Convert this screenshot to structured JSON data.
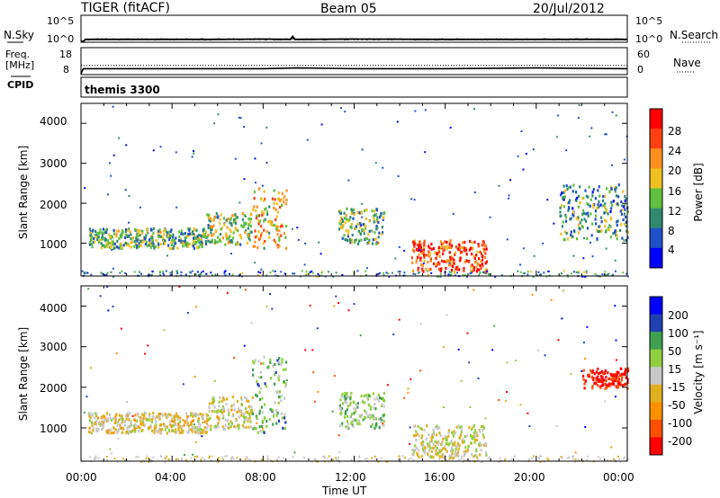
{
  "header": {
    "title": "TIGER (fitACF)",
    "beam": "Beam 05",
    "date": "20/Jul/2012"
  },
  "strip1": {
    "left_label": "N.Sky",
    "left_ticks": [
      "10^5",
      "10^0"
    ],
    "right_ticks": [
      "10^5",
      "10^0"
    ],
    "right_label": "N.Search"
  },
  "strip2": {
    "left_label_1": "Freq.",
    "left_label_2": "[MHz]",
    "left_ticks": [
      "18",
      "8"
    ],
    "right_ticks": [
      "60",
      "0"
    ],
    "right_label": "Nave"
  },
  "strip3": {
    "left_label": "CPID",
    "program": "themis 3300"
  },
  "panels": {
    "power": {
      "ylabel": "Slant Range [km]",
      "yticks": [
        "4000",
        "3000",
        "2000",
        "1000"
      ],
      "colorbar_label": "Power [dB]",
      "colorbar_ticks": [
        "28",
        "24",
        "20",
        "16",
        "12",
        "8",
        "4"
      ]
    },
    "velocity": {
      "ylabel": "Slant Range [km]",
      "yticks": [
        "4000",
        "3000",
        "2000",
        "1000"
      ],
      "colorbar_label": "Velocity [m s⁻¹]",
      "colorbar_ticks": [
        "200",
        "100",
        "50",
        "15",
        "-15",
        "-50",
        "-100",
        "-200"
      ]
    }
  },
  "xaxis": {
    "label": "Time UT",
    "ticks": [
      "00:00",
      "04:00",
      "08:00",
      "12:00",
      "16:00",
      "20:00",
      "00:00"
    ]
  },
  "colors": {
    "power_scale": [
      "#0000ff",
      "#2050c8",
      "#308a70",
      "#60c040",
      "#f0c020",
      "#ff9020",
      "#ff4010",
      "#ff0000"
    ],
    "velocity_scale": [
      "#ff0000",
      "#ff5000",
      "#ff9000",
      "#e0b020",
      "#c8c8c8",
      "#90d040",
      "#40a050",
      "#2040b0",
      "#0000ff"
    ]
  },
  "chart_data": [
    {
      "type": "line",
      "title": "N.Sky / N.Search",
      "ylim_log10": [
        0,
        5
      ],
      "x_hours": [
        0,
        0.1,
        0.2,
        2,
        4,
        6,
        8,
        9.2,
        9.3,
        9.4,
        12,
        16,
        20,
        24
      ],
      "series": [
        {
          "name": "N.Sky",
          "values_log10": [
            0,
            0,
            0.4,
            0.4,
            0.4,
            0.4,
            0.45,
            0.4,
            1.0,
            0.4,
            0.45,
            0.4,
            0.4,
            0.4
          ]
        }
      ]
    },
    {
      "type": "line",
      "title": "Freq. [MHz] / Nave",
      "ylim_freq": [
        8,
        18
      ],
      "ylim_nave": [
        0,
        60
      ],
      "x_hours": [
        0,
        0.1,
        2,
        4,
        6,
        8,
        9.5,
        12,
        16,
        20,
        24
      ],
      "series": [
        {
          "name": "Freq.",
          "values": [
            8,
            10,
            10,
            10,
            10,
            10,
            10.3,
            10,
            10,
            10.3,
            10
          ]
        },
        {
          "name": "Nave",
          "values": [
            20,
            20,
            20,
            20,
            20,
            20,
            20,
            20,
            20,
            20,
            20
          ]
        }
      ]
    },
    {
      "type": "heatmap",
      "title": "Power [dB]",
      "xlabel": "Time UT",
      "ylabel": "Slant Range [km]",
      "xlim_hours": [
        0,
        24
      ],
      "ylim_km": [
        180,
        4500
      ],
      "zlim": [
        0,
        30
      ],
      "echo_regions": [
        {
          "t_start": 0.3,
          "t_end": 5.5,
          "range_start_km": 900,
          "range_end_km": 1400,
          "power_db": 12
        },
        {
          "t_start": 5.5,
          "t_end": 7.5,
          "range_start_km": 1000,
          "range_end_km": 1800,
          "power_db": 14
        },
        {
          "t_start": 7.5,
          "t_end": 9.0,
          "range_start_km": 900,
          "range_end_km": 2400,
          "power_db": 18
        },
        {
          "t_start": 11.3,
          "t_end": 13.3,
          "range_start_km": 1000,
          "range_end_km": 1900,
          "power_db": 12
        },
        {
          "t_start": 14.5,
          "t_end": 17.8,
          "range_start_km": 300,
          "range_end_km": 1100,
          "power_db": 24
        },
        {
          "t_start": 21.0,
          "t_end": 24.0,
          "range_start_km": 1100,
          "range_end_km": 2500,
          "power_db": 10
        }
      ]
    },
    {
      "type": "heatmap",
      "title": "Velocity [m s-1]",
      "xlabel": "Time UT",
      "ylabel": "Slant Range [km]",
      "xlim_hours": [
        0,
        24
      ],
      "ylim_km": [
        180,
        4500
      ],
      "zlim": [
        -200,
        200
      ],
      "echo_regions": [
        {
          "t_start": 0.3,
          "t_end": 5.5,
          "range_start_km": 900,
          "range_end_km": 1400,
          "velocity_ms": -20
        },
        {
          "t_start": 5.5,
          "t_end": 7.5,
          "range_start_km": 1000,
          "range_end_km": 1800,
          "velocity_ms": -10
        },
        {
          "t_start": 7.5,
          "t_end": 9.0,
          "range_start_km": 900,
          "range_end_km": 2800,
          "velocity_ms": 60
        },
        {
          "t_start": 11.3,
          "t_end": 13.3,
          "range_start_km": 1000,
          "range_end_km": 1900,
          "velocity_ms": 40
        },
        {
          "t_start": 14.5,
          "t_end": 17.8,
          "range_start_km": 300,
          "range_end_km": 1100,
          "velocity_ms": -5
        },
        {
          "t_start": 22.0,
          "t_end": 24.0,
          "range_start_km": 2000,
          "range_end_km": 2500,
          "velocity_ms": -180
        }
      ]
    }
  ]
}
